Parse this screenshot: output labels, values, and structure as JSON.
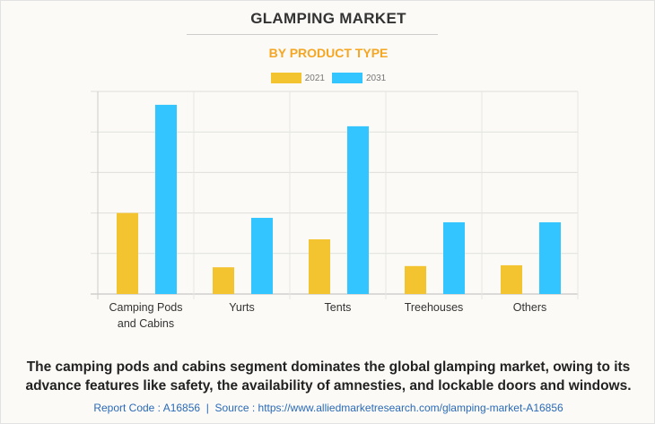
{
  "chart_data": {
    "type": "bar",
    "title": "GLAMPING MARKET",
    "subtitle": "BY PRODUCT TYPE",
    "categories": [
      [
        "Camping Pods",
        "and Cabins"
      ],
      [
        "Yurts"
      ],
      [
        "Tents"
      ],
      [
        "Treehouses"
      ],
      [
        "Others"
      ]
    ],
    "series": [
      {
        "name": "2021",
        "color": "#f4c430",
        "values": [
          2.0,
          0.66,
          1.35,
          0.69,
          0.71
        ]
      },
      {
        "name": "2031",
        "color": "#33c5ff",
        "values": [
          4.67,
          1.88,
          4.14,
          1.77,
          1.77
        ]
      }
    ],
    "ylim": [
      0,
      5
    ],
    "grid": true,
    "legend": "top-center",
    "xlabel": "",
    "ylabel": ""
  },
  "footer": {
    "summary": "The camping pods and cabins segment dominates the global glamping market, owing to its advance features like safety, the availability of amnesties, and lockable doors and windows.",
    "source": "Report Code : A16856  |  Source : https://www.alliedmarketresearch.com/glamping-market-A16856"
  }
}
